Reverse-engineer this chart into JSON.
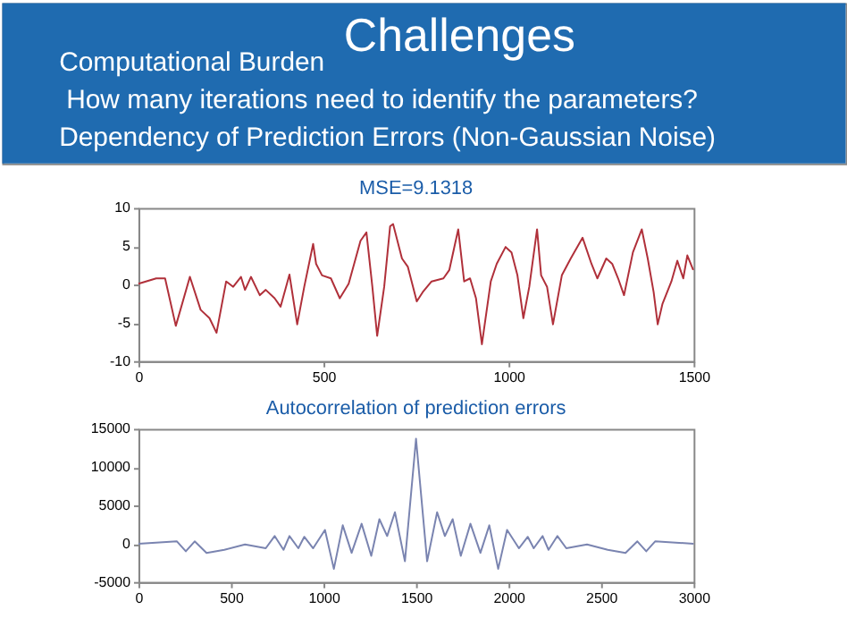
{
  "chart_data": [
    {
      "type": "other",
      "title": "Challenges",
      "annotations": [
        "Computational Burden",
        "How many iterations need to identify the parameters?",
        "Dependency of Prediction Errors (Non-Gaussian Noise)"
      ]
    },
    {
      "type": "line",
      "title": "MSE=9.1318",
      "grid": false,
      "xlim": [
        0,
        1500
      ],
      "xticks": [
        0,
        500,
        1000,
        1500
      ],
      "ylim": [
        -10,
        10
      ],
      "yticks": [
        -10,
        -5,
        0,
        5,
        10
      ],
      "x": [
        0,
        48,
        72,
        101,
        139,
        168,
        192,
        211,
        237,
        256,
        277,
        288,
        304,
        328,
        344,
        368,
        384,
        408,
        429,
        448,
        472,
        480,
        496,
        520,
        544,
        568,
        600,
        616,
        632,
        645,
        664,
        680,
        688,
        712,
        728,
        752,
        768,
        792,
        824,
        840,
        864,
        880,
        896,
        912,
        928,
        952,
        968,
        992,
        1008,
        1024,
        1040,
        1056,
        1077,
        1088,
        1104,
        1120,
        1144,
        1168,
        1200,
        1224,
        1240,
        1264,
        1280,
        1296,
        1312,
        1336,
        1360,
        1376,
        1392,
        1403,
        1416,
        1440,
        1456,
        1472,
        1483,
        1499
      ],
      "series": [
        {
          "color": "#b0303a",
          "values": [
            0.1,
            0.8,
            0.8,
            -5.4,
            1.0,
            -3.3,
            -4.4,
            -6.3,
            0.4,
            -0.3,
            1.0,
            -0.7,
            1.0,
            -1.4,
            -0.7,
            -1.8,
            -2.9,
            1.3,
            -5.2,
            -0.3,
            5.3,
            2.7,
            1.2,
            0.8,
            -1.8,
            0.1,
            5.7,
            6.8,
            -0.3,
            -6.7,
            -0.3,
            7.6,
            7.9,
            3.4,
            2.3,
            -2.2,
            -1.0,
            0.4,
            0.8,
            1.9,
            7.2,
            0.4,
            0.8,
            -1.8,
            -7.8,
            0.4,
            2.7,
            4.9,
            4.2,
            1.2,
            -4.4,
            -0.3,
            7.2,
            1.2,
            -0.3,
            -5.2,
            1.2,
            3.4,
            6.1,
            2.7,
            0.8,
            3.4,
            2.7,
            0.8,
            -1.4,
            4.2,
            7.2,
            3.4,
            -1.0,
            -5.2,
            -2.5,
            0.4,
            3.1,
            0.8,
            3.8,
            1.9
          ]
        }
      ]
    },
    {
      "type": "line",
      "title": "Autocorrelation of prediction errors",
      "grid": false,
      "xlim": [
        0,
        3000
      ],
      "xticks": [
        0,
        500,
        1000,
        1500,
        2000,
        2500,
        3000
      ],
      "ylim": [
        -5000,
        15000
      ],
      "yticks": [
        -5000,
        0,
        5000,
        10000,
        15000
      ],
      "x": [
        0,
        208,
        256,
        304,
        368,
        464,
        576,
        688,
        736,
        784,
        816,
        864,
        896,
        944,
        1008,
        1056,
        1104,
        1152,
        1206,
        1258,
        1302,
        1344,
        1386,
        1440,
        1500,
        1560,
        1614,
        1656,
        1698,
        1742,
        1794,
        1848,
        1896,
        1944,
        1992,
        2056,
        2104,
        2136,
        2184,
        2216,
        2264,
        2312,
        2424,
        2536,
        2632,
        2696,
        2744,
        2792,
        3000
      ],
      "series": [
        {
          "color": "#7a84b0",
          "values": [
            0,
            300,
            -1000,
            300,
            -1200,
            -800,
            -100,
            -600,
            1000,
            -800,
            1000,
            -600,
            900,
            -600,
            1800,
            -3300,
            2400,
            -1200,
            2600,
            -1600,
            3200,
            1000,
            4100,
            -2300,
            13700,
            -2300,
            4100,
            1000,
            3200,
            -1600,
            2600,
            -1200,
            2400,
            -3300,
            1800,
            -600,
            900,
            -600,
            1000,
            -800,
            1000,
            -600,
            -100,
            -800,
            -1200,
            300,
            -1000,
            300,
            0
          ]
        }
      ]
    }
  ]
}
